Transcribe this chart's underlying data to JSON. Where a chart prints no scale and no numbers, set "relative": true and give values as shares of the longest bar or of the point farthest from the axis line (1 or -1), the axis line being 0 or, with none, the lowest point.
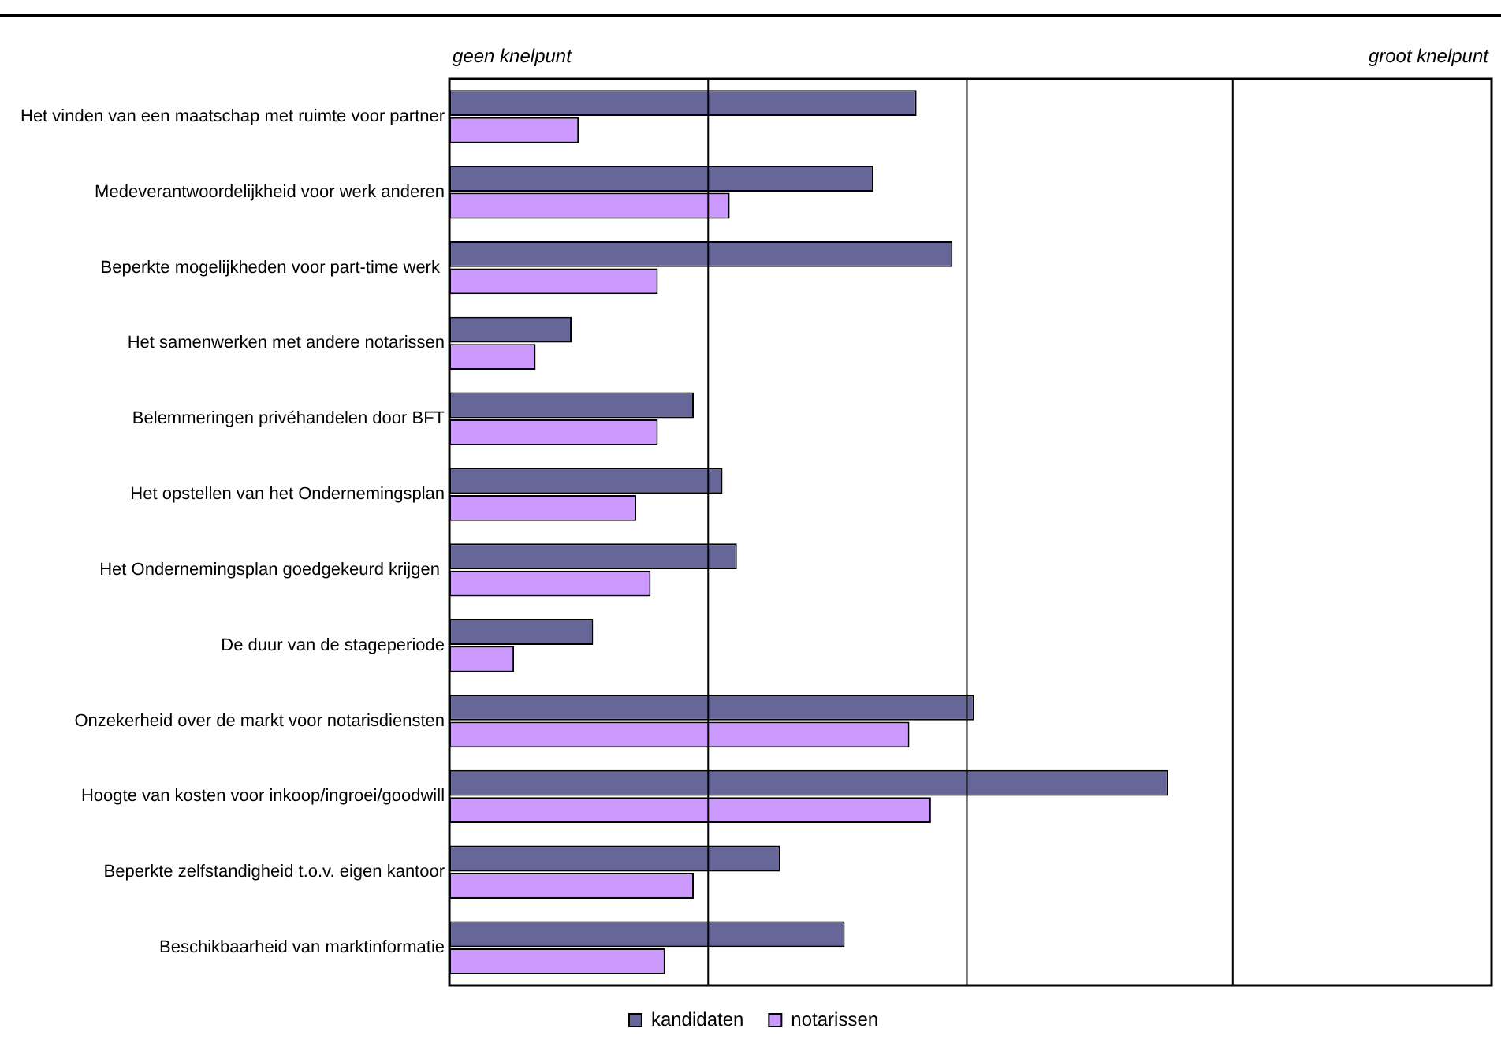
{
  "chart_data": {
    "type": "bar",
    "orientation": "horizontal",
    "relative": true,
    "legend": "bottom",
    "ref_lines": [
      {
        "axis": "x",
        "value": 0.36,
        "color": "#000000"
      },
      {
        "axis": "x",
        "value": 0.72,
        "color": "#000000"
      },
      {
        "axis": "x",
        "value": 1.09,
        "color": "#000000"
      }
    ],
    "annotations": [
      "geen knelpunt",
      "groot knelpunt"
    ],
    "categories": [
      "Het vinden van een maatschap met ruimte voor partner",
      "Medeverantwoordelijkheid voor werk anderen",
      "Beperkte mogelijkheden voor part-time werk ",
      "Het samenwerken met andere notarissen",
      "Belemmeringen privéhandelen door BFT",
      "Het opstellen van het Ondernemingsplan",
      "Het Ondernemingsplan goedgekeurd krijgen ",
      "De duur van de stageperiode",
      "Onzekerheid over de markt voor notarisdiensten",
      "Hoogte van kosten voor inkoop/ingroei/goodwill",
      "Beperkte zelfstandigheid t.o.v. eigen kantoor",
      "Beschikbaarheid van marktinformatie"
    ],
    "series": [
      {
        "name": "kandidaten",
        "color": "#666699",
        "values": [
          0.65,
          0.59,
          0.7,
          0.17,
          0.34,
          0.38,
          0.4,
          0.2,
          0.73,
          1,
          0.46,
          0.55
        ]
      },
      {
        "name": "notarissen",
        "color": "#cc99ff",
        "values": [
          0.18,
          0.39,
          0.29,
          0.12,
          0.29,
          0.26,
          0.28,
          0.09,
          0.64,
          0.67,
          0.34,
          0.3
        ]
      }
    ]
  }
}
